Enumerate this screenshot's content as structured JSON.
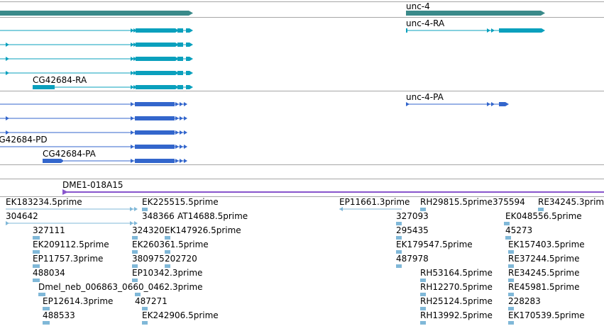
{
  "colors": {
    "gene": "#3a8a8a",
    "mrna": "#0aa0bd",
    "cds": "#3366cc",
    "clone": "#8855cc",
    "est": "#80b8d8",
    "divider": "#a6a6a6",
    "text": "#000000"
  },
  "tracks": {
    "gene": {
      "features": [
        {
          "label": "",
          "strand": "plus"
        },
        {
          "label": "unc-4",
          "strand": "plus"
        }
      ]
    },
    "transcripts": {
      "features": [
        {
          "label": "unc-4-RA"
        },
        {
          "label": "CG42684-RA"
        }
      ]
    },
    "cds": {
      "features": [
        {
          "label": "unc-4-PA"
        },
        {
          "label": "CG42684-PD"
        },
        {
          "label": "CG42684-PA"
        }
      ]
    },
    "clones": {
      "features": [
        {
          "label": "DME1-018A15"
        }
      ]
    },
    "ests": {
      "labels": [
        "EK183234.5prime",
        "304642",
        "327111",
        "EK209112.5prime",
        "EP11757.3prime",
        "488034",
        "Dmel_neb_006863_0660_0462.3prime",
        "EP12614.3prime",
        "488533",
        "EK225515.5prime",
        "348366",
        "AT14688.5prime",
        "324320",
        "EK147926.5prime",
        "EK260361.5prime",
        "380975",
        "202720",
        "EP10342.3prime",
        "487271",
        "EK242906.5prime",
        "EP11661.3prime",
        "327093",
        "295435",
        "EK179547.5prime",
        "487978",
        "RH29815.5prime",
        "RH53164.5prime",
        "RH12270.5prime",
        "RH25124.5prime",
        "RH13992.5prime",
        "375594",
        "RE34245.3prime",
        "EK048556.5prime",
        "45273",
        "EK157403.5prime",
        "RE37244.5prime",
        "RE34245.5prime",
        "RE45981.5prime",
        "228283",
        "EK170539.5prime"
      ]
    }
  }
}
